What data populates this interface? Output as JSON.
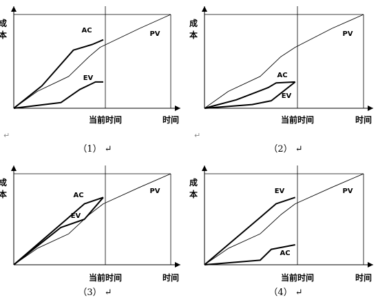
{
  "chart_data": [
    {
      "type": "line",
      "panel_label": "（1）",
      "ylabel": "成本",
      "x_ticks": [
        "当前时间",
        "时间"
      ],
      "series": [
        {
          "name": "PV",
          "points": [
            [
              0,
              0
            ],
            [
              0.15,
              0.18
            ],
            [
              0.35,
              0.34
            ],
            [
              0.48,
              0.55
            ],
            [
              0.55,
              0.65
            ],
            [
              0.8,
              0.85
            ],
            [
              1.0,
              1.0
            ]
          ]
        },
        {
          "name": "AC",
          "points": [
            [
              0,
              0
            ],
            [
              0.18,
              0.24
            ],
            [
              0.38,
              0.62
            ],
            [
              0.5,
              0.68
            ],
            [
              0.57,
              0.73
            ]
          ]
        },
        {
          "name": "EV",
          "points": [
            [
              0,
              0
            ],
            [
              0.3,
              0.06
            ],
            [
              0.42,
              0.2
            ],
            [
              0.52,
              0.28
            ],
            [
              0.57,
              0.28
            ]
          ]
        }
      ]
    },
    {
      "type": "line",
      "panel_label": "（2）",
      "ylabel": "成本",
      "x_ticks": [
        "当前时间",
        "时间"
      ],
      "series": [
        {
          "name": "PV",
          "points": [
            [
              0,
              0
            ],
            [
              0.15,
              0.18
            ],
            [
              0.35,
              0.34
            ],
            [
              0.48,
              0.55
            ],
            [
              0.57,
              0.65
            ],
            [
              0.8,
              0.85
            ],
            [
              1.0,
              1.0
            ]
          ]
        },
        {
          "name": "AC",
          "points": [
            [
              0,
              0
            ],
            [
              0.2,
              0.09
            ],
            [
              0.4,
              0.22
            ],
            [
              0.45,
              0.27
            ],
            [
              0.57,
              0.28
            ]
          ]
        },
        {
          "name": "EV",
          "points": [
            [
              0,
              0
            ],
            [
              0.3,
              0.04
            ],
            [
              0.42,
              0.08
            ],
            [
              0.57,
              0.28
            ]
          ]
        }
      ]
    },
    {
      "type": "line",
      "panel_label": "（3）",
      "ylabel": "成本",
      "x_ticks": [
        "当前时间",
        "时间"
      ],
      "series": [
        {
          "name": "PV",
          "points": [
            [
              0,
              0
            ],
            [
              0.15,
              0.18
            ],
            [
              0.35,
              0.34
            ],
            [
              0.48,
              0.55
            ],
            [
              0.57,
              0.67
            ],
            [
              0.8,
              0.85
            ],
            [
              1.0,
              1.0
            ]
          ]
        },
        {
          "name": "AC",
          "points": [
            [
              0,
              0
            ],
            [
              0.35,
              0.52
            ],
            [
              0.45,
              0.67
            ],
            [
              0.57,
              0.74
            ]
          ]
        },
        {
          "name": "EV",
          "points": [
            [
              0,
              0
            ],
            [
              0.3,
              0.41
            ],
            [
              0.45,
              0.5
            ],
            [
              0.57,
              0.74
            ]
          ]
        }
      ]
    },
    {
      "type": "line",
      "panel_label": "（4）",
      "ylabel": "成本",
      "x_ticks": [
        "当前时间",
        "时间"
      ],
      "series": [
        {
          "name": "PV",
          "points": [
            [
              0,
              0
            ],
            [
              0.15,
              0.18
            ],
            [
              0.35,
              0.34
            ],
            [
              0.48,
              0.55
            ],
            [
              0.57,
              0.67
            ],
            [
              0.8,
              0.85
            ],
            [
              1.0,
              1.0
            ]
          ]
        },
        {
          "name": "EV",
          "points": [
            [
              0,
              0
            ],
            [
              0.35,
              0.52
            ],
            [
              0.45,
              0.67
            ],
            [
              0.57,
              0.74
            ]
          ]
        },
        {
          "name": "AC",
          "points": [
            [
              0,
              0
            ],
            [
              0.35,
              0.05
            ],
            [
              0.42,
              0.17
            ],
            [
              0.57,
              0.22
            ]
          ]
        }
      ]
    }
  ],
  "return_mark": "↵"
}
